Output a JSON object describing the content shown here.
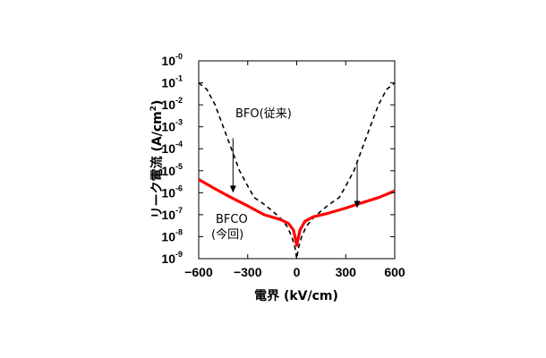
{
  "chart_data": {
    "type": "line",
    "xlabel": "電界 (kV/cm)",
    "ylabel": "リーク電流 (A/cm",
    "ylabel_sup": "2",
    "ylabel_close": ")",
    "xlim": [
      -600,
      600
    ],
    "ylim_log10": [
      -9,
      0
    ],
    "x_ticks": [
      {
        "value": -600,
        "label": "−600"
      },
      {
        "value": -300,
        "label": "−300"
      },
      {
        "value": 0,
        "label": "0"
      },
      {
        "value": 300,
        "label": "300"
      },
      {
        "value": 600,
        "label": "600"
      }
    ],
    "y_ticks": [
      {
        "exp": 0,
        "base": "10",
        "sup": "-0"
      },
      {
        "exp": -1,
        "base": "10",
        "sup": "-1"
      },
      {
        "exp": -2,
        "base": "10",
        "sup": "-2"
      },
      {
        "exp": -3,
        "base": "10",
        "sup": "-3"
      },
      {
        "exp": -4,
        "base": "10",
        "sup": "-4"
      },
      {
        "exp": -5,
        "base": "10",
        "sup": "-5"
      },
      {
        "exp": -6,
        "base": "10",
        "sup": "-6"
      },
      {
        "exp": -7,
        "base": "10",
        "sup": "-7"
      },
      {
        "exp": -8,
        "base": "10",
        "sup": "-8"
      },
      {
        "exp": -9,
        "base": "10",
        "sup": "-9"
      }
    ],
    "series": [
      {
        "name": "BFO(従来)",
        "style": "dashed",
        "color": "#000000",
        "points": [
          [
            -600,
            0.1
          ],
          [
            -550,
            0.05
          ],
          [
            -500,
            0.01
          ],
          [
            -450,
            0.001
          ],
          [
            -400,
            0.0001
          ],
          [
            -350,
            1e-05
          ],
          [
            -300,
            2e-06
          ],
          [
            -260,
            6e-07
          ],
          [
            -200,
            3e-07
          ],
          [
            -150,
            1.5e-07
          ],
          [
            -100,
            7e-08
          ],
          [
            -60,
            3e-08
          ],
          [
            -30,
            1e-08
          ],
          [
            -10,
            3e-09
          ],
          [
            0,
            1e-09
          ],
          [
            10,
            3e-09
          ],
          [
            30,
            1e-08
          ],
          [
            60,
            3e-08
          ],
          [
            100,
            7e-08
          ],
          [
            150,
            1.5e-07
          ],
          [
            200,
            3e-07
          ],
          [
            260,
            6e-07
          ],
          [
            300,
            2e-06
          ],
          [
            350,
            1e-05
          ],
          [
            400,
            0.0001
          ],
          [
            450,
            0.001
          ],
          [
            500,
            0.01
          ],
          [
            550,
            0.05
          ],
          [
            600,
            0.1
          ]
        ]
      },
      {
        "name": "BFCO(今回)",
        "style": "solid",
        "color": "#ff0000",
        "points": [
          [
            -600,
            4e-06
          ],
          [
            -500,
            1.5e-06
          ],
          [
            -400,
            6e-07
          ],
          [
            -300,
            2.5e-07
          ],
          [
            -200,
            1e-07
          ],
          [
            -100,
            6e-08
          ],
          [
            -50,
            4e-08
          ],
          [
            -20,
            2e-08
          ],
          [
            -8,
            8e-09
          ],
          [
            0,
            4e-09
          ],
          [
            8,
            8e-09
          ],
          [
            20,
            2e-08
          ],
          [
            50,
            5e-08
          ],
          [
            100,
            8e-08
          ],
          [
            200,
            1.2e-07
          ],
          [
            300,
            2e-07
          ],
          [
            400,
            3.5e-07
          ],
          [
            500,
            6e-07
          ],
          [
            600,
            1.2e-06
          ]
        ]
      }
    ],
    "annotations": {
      "bfo_label": "BFO(従来)",
      "bfco_label_line1": "BFCO",
      "bfco_label_line2": "(今回)"
    },
    "arrows": [
      {
        "x": -390,
        "from": 0.0003,
        "to": 1e-06
      },
      {
        "x": 370,
        "from": 3e-05,
        "to": 2e-07
      }
    ]
  }
}
